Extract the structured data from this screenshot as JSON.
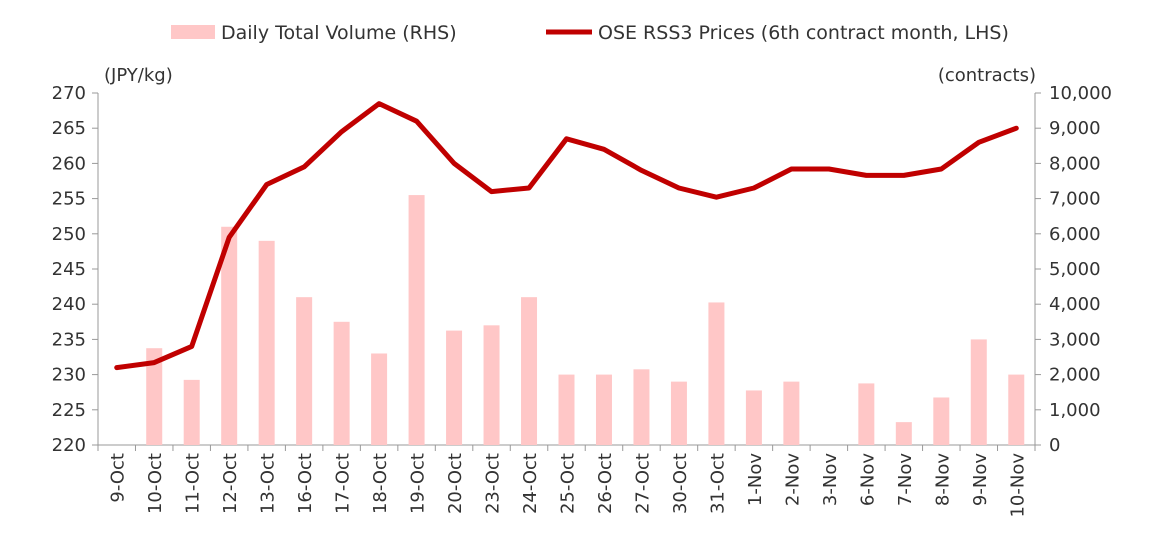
{
  "chart_data": {
    "type": "bar+line",
    "categories": [
      "9-Oct",
      "10-Oct",
      "11-Oct",
      "12-Oct",
      "13-Oct",
      "16-Oct",
      "17-Oct",
      "18-Oct",
      "19-Oct",
      "20-Oct",
      "23-Oct",
      "24-Oct",
      "25-Oct",
      "26-Oct",
      "27-Oct",
      "30-Oct",
      "31-Oct",
      "1-Nov",
      "2-Nov",
      "3-Nov",
      "6-Nov",
      "7-Nov",
      "8-Nov",
      "9-Nov",
      "10-Nov"
    ],
    "y_left": {
      "label": "(JPY/kg)",
      "min": 220,
      "max": 270,
      "step": 5,
      "ticks": [
        "220",
        "225",
        "230",
        "235",
        "240",
        "245",
        "250",
        "255",
        "260",
        "265",
        "270"
      ]
    },
    "y_right": {
      "label": "(contracts)",
      "min": 0,
      "max": 10000,
      "step": 1000,
      "ticks": [
        "0",
        "1,000",
        "2,000",
        "3,000",
        "4,000",
        "5,000",
        "6,000",
        "7,000",
        "8,000",
        "9,000",
        "10,000"
      ]
    },
    "series": [
      {
        "name": "Daily Total Volume (RHS)",
        "kind": "bar",
        "axis": "right",
        "color": "#ffc7c7",
        "values": [
          0,
          2750,
          1850,
          6200,
          5800,
          4200,
          3500,
          2600,
          7100,
          3250,
          3400,
          4200,
          2000,
          2000,
          2150,
          1800,
          4050,
          1550,
          1800,
          0,
          1750,
          650,
          1350,
          3000,
          2000
        ]
      },
      {
        "name": "OSE RSS3 Prices (6th contract month, LHS)",
        "kind": "line",
        "axis": "left",
        "color": "#c00000",
        "values": [
          231.0,
          231.7,
          234.0,
          249.5,
          257.0,
          259.5,
          264.5,
          268.5,
          266.0,
          260.0,
          256.0,
          256.5,
          263.5,
          262.0,
          259.0,
          256.5,
          255.2,
          256.5,
          259.2,
          259.2,
          258.3,
          258.3,
          259.2,
          263.0,
          265.0
        ]
      }
    ],
    "legend_position": "top",
    "grid": false
  }
}
